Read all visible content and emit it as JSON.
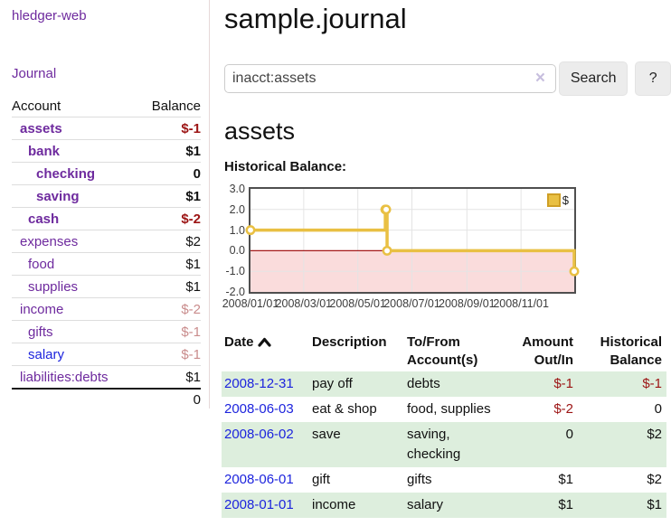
{
  "app": {
    "brand": "hledger-web",
    "nav_journal": "Journal"
  },
  "sidebar": {
    "table": {
      "header_account": "Account",
      "header_balance": "Balance",
      "rows": [
        {
          "name": "assets",
          "depth": 1,
          "bold": true,
          "balance": "$-1",
          "balance_class": "neg-strong"
        },
        {
          "name": "bank",
          "depth": 2,
          "bold": true,
          "balance": "$1",
          "balance_class": "plain"
        },
        {
          "name": "checking",
          "depth": 3,
          "bold": true,
          "balance": "0",
          "balance_class": "plain"
        },
        {
          "name": "saving",
          "depth": 3,
          "bold": true,
          "balance": "$1",
          "balance_class": "plain"
        },
        {
          "name": "cash",
          "depth": 2,
          "bold": true,
          "balance": "$-2",
          "balance_class": "neg-strong"
        },
        {
          "name": "expenses",
          "depth": 1,
          "bold": false,
          "balance": "$2",
          "balance_class": "plain"
        },
        {
          "name": "food",
          "depth": 2,
          "bold": false,
          "balance": "$1",
          "balance_class": "plain"
        },
        {
          "name": "supplies",
          "depth": 2,
          "bold": false,
          "balance": "$1",
          "balance_class": "plain"
        },
        {
          "name": "income",
          "depth": 1,
          "bold": false,
          "balance": "$-2",
          "balance_class": "neg-soft"
        },
        {
          "name": "gifts",
          "depth": 2,
          "bold": false,
          "balance": "$-1",
          "balance_class": "neg-soft"
        },
        {
          "name": "salary",
          "depth": 2,
          "bold": false,
          "link_style": "blue",
          "balance": "$-1",
          "balance_class": "neg-soft"
        },
        {
          "name": "liabilities:debts",
          "depth": 1,
          "bold": false,
          "balance": "$1",
          "balance_class": "plain"
        }
      ],
      "total": "0"
    }
  },
  "main": {
    "title": "sample.journal",
    "search": {
      "value": "inacct:assets",
      "clear": "×",
      "submit": "Search",
      "help": "?"
    },
    "account_heading": "assets",
    "section_label": "Historical Balance:"
  },
  "chart_data": {
    "type": "line",
    "title": "Historical Balance of assets",
    "series": [
      {
        "name": "$",
        "step": true,
        "points": [
          [
            "2008-01-01",
            1
          ],
          [
            "2008-06-01",
            2
          ],
          [
            "2008-06-02",
            2
          ],
          [
            "2008-06-03",
            0
          ],
          [
            "2008-12-31",
            -1
          ]
        ]
      }
    ],
    "xlim": [
      "2008-01-01",
      "2008-12-31"
    ],
    "ylim": [
      -2,
      3
    ],
    "x_tick_labels": [
      "2008/01/01",
      "2008/03/01",
      "2008/05/01",
      "2008/07/01",
      "2008/09/01",
      "2008/11/01"
    ],
    "y_tick_labels": [
      "3.0",
      "2.0",
      "1.0",
      "0.0",
      "-1.0",
      "-2.0"
    ],
    "grid": true,
    "legend": {
      "position": "top-right",
      "label": "$"
    },
    "negative_band": true
  },
  "register": {
    "headers": {
      "date": "Date",
      "description": "Description",
      "accounts": "To/From Account(s)",
      "amount": "Amount Out/In",
      "balance": "Historical Balance"
    },
    "sort": {
      "column": "date",
      "direction": "ascending"
    },
    "rows": [
      {
        "date": "2008-12-31",
        "description": "pay off",
        "accounts": "debts",
        "amount": "$-1",
        "amount_class": "neg",
        "balance": "$-1",
        "balance_class": "neg"
      },
      {
        "date": "2008-06-03",
        "description": "eat & shop",
        "accounts": "food, supplies",
        "amount": "$-2",
        "amount_class": "neg",
        "balance": "0",
        "balance_class": "plain"
      },
      {
        "date": "2008-06-02",
        "description": "save",
        "accounts": "saving, checking",
        "amount": "0",
        "amount_class": "plain",
        "balance": "$2",
        "balance_class": "plain"
      },
      {
        "date": "2008-06-01",
        "description": "gift",
        "accounts": "gifts",
        "amount": "$1",
        "amount_class": "plain",
        "balance": "$2",
        "balance_class": "plain"
      },
      {
        "date": "2008-01-01",
        "description": "income",
        "accounts": "salary",
        "amount": "$1",
        "amount_class": "plain",
        "balance": "$1",
        "balance_class": "plain"
      }
    ]
  },
  "colors": {
    "link_purple": "#6e2a9e",
    "link_blue": "#1d24dd",
    "neg_strong": "#9c1414",
    "neg_soft": "#c98c8c",
    "row_green": "#ddeedd",
    "row_line": "#dddddd",
    "divider": "#e6d8d8",
    "chart_gold": "#e9c043",
    "chart_gold_dark": "#cf9f26",
    "chart_pink": "#fadcdc",
    "chart_zero_red": "#a51a1a",
    "chart_border": "#4f4f4f",
    "grid": "#e4e4e4",
    "button_bg": "#ececec",
    "input_border": "#cccccc",
    "clear_x": "#c7bede",
    "text": "#111111"
  }
}
